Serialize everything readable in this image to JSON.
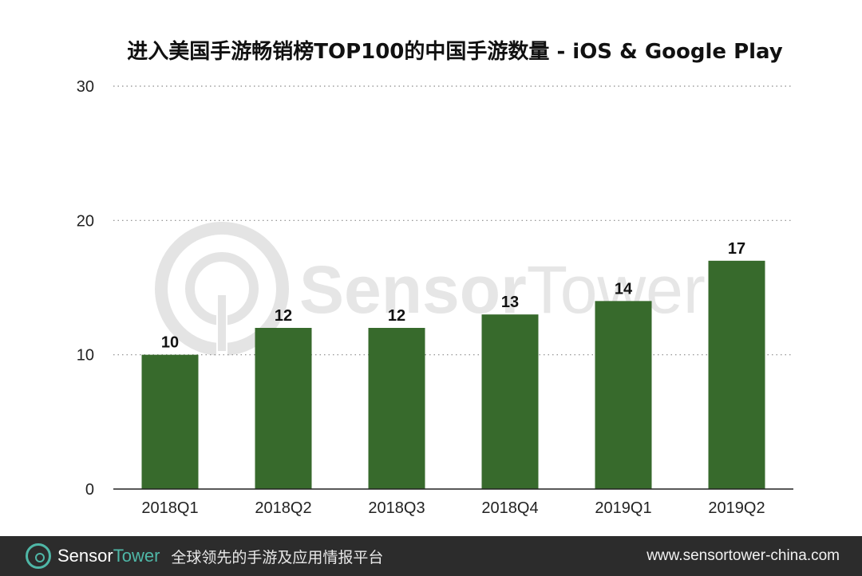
{
  "chart_data": {
    "type": "bar",
    "title": "进入美国手游畅销榜TOP100的中国手游数量 - iOS & Google Play",
    "categories": [
      "2018Q1",
      "2018Q2",
      "2018Q3",
      "2018Q4",
      "2019Q1",
      "2019Q2"
    ],
    "values": [
      10,
      12,
      12,
      13,
      14,
      17
    ],
    "data_labels": [
      "10",
      "12",
      "12",
      "13",
      "14",
      "17"
    ],
    "ylim": [
      0,
      30
    ],
    "yticks": [
      0,
      10,
      20,
      30
    ],
    "ytick_labels": [
      "0",
      "10",
      "20",
      "30"
    ],
    "xlabel": "",
    "ylabel": "",
    "grid": true,
    "bar_color": "#376a2c"
  },
  "watermark": {
    "brand_part1": "Sensor",
    "brand_part2": "Tower"
  },
  "footer": {
    "brand_part1": "Sensor",
    "brand_part2": "Tower",
    "slogan": "全球领先的手游及应用情报平台",
    "url": "www.sensortower-china.com",
    "accent_color": "#4fb7a7"
  }
}
